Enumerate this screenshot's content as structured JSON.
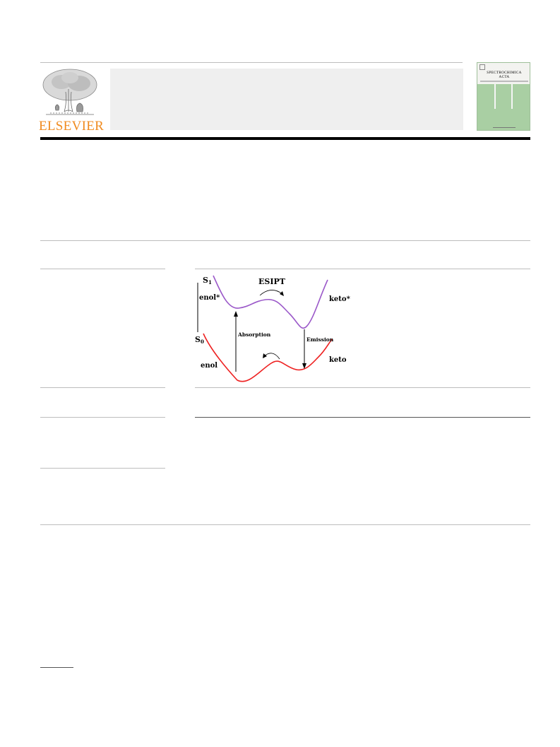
{
  "header": {
    "publisher_name": "ELSEVIER",
    "journal_cover_title_line1": "SPECTROCHIMICA",
    "journal_cover_title_line2": "ACTA"
  },
  "graphical_abstract": {
    "state_excited": "S",
    "state_excited_sub": "1",
    "state_ground": "S",
    "state_ground_sub": "0",
    "label_esipt": "ESIPT",
    "label_enol_excited": "enol*",
    "label_keto_excited": "keto*",
    "label_enol": "enol",
    "label_keto": "keto",
    "label_absorption": "Absorption",
    "label_emission": "Emission",
    "colors": {
      "excited_curve": "#9b59c9",
      "ground_curve": "#ee2222"
    }
  }
}
